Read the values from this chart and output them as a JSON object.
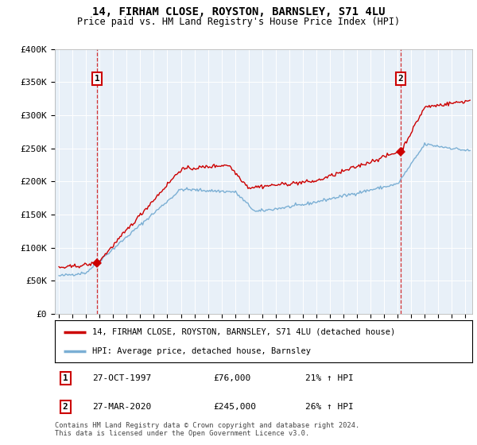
{
  "title": "14, FIRHAM CLOSE, ROYSTON, BARNSLEY, S71 4LU",
  "subtitle": "Price paid vs. HM Land Registry's House Price Index (HPI)",
  "legend_line1": "14, FIRHAM CLOSE, ROYSTON, BARNSLEY, S71 4LU (detached house)",
  "legend_line2": "HPI: Average price, detached house, Barnsley",
  "point1_date": "27-OCT-1997",
  "point1_price": "£76,000",
  "point1_hpi": "21% ↑ HPI",
  "point2_date": "27-MAR-2020",
  "point2_price": "£245,000",
  "point2_hpi": "26% ↑ HPI",
  "footer": "Contains HM Land Registry data © Crown copyright and database right 2024.\nThis data is licensed under the Open Government Licence v3.0.",
  "red_color": "#cc0000",
  "blue_color": "#7bafd4",
  "chart_bg": "#e8f0f8",
  "ylim": [
    0,
    400000
  ],
  "yticks": [
    0,
    50000,
    100000,
    150000,
    200000,
    250000,
    300000,
    350000,
    400000
  ],
  "ytick_labels": [
    "£0",
    "£50K",
    "£100K",
    "£150K",
    "£200K",
    "£250K",
    "£300K",
    "£350K",
    "£400K"
  ],
  "xlim_start": 1994.7,
  "xlim_end": 2025.5,
  "point1_x": 1997.82,
  "point1_y": 76000,
  "point2_x": 2020.23,
  "point2_y": 245000
}
